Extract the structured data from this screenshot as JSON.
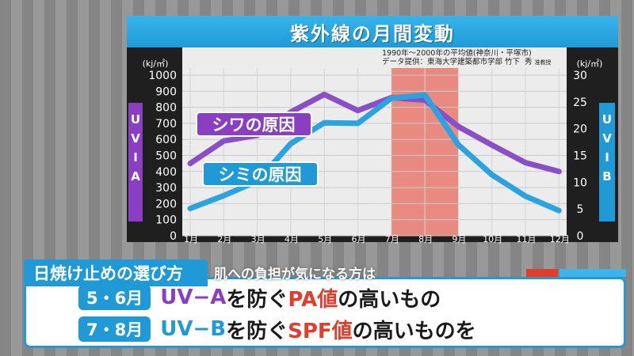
{
  "header": {
    "title": "紫外線の月間変動"
  },
  "note": {
    "line1": "1990年～2000年の平均値(神奈川・平塚市)",
    "line2": "データ提供：東海大学建築都市学部  竹下",
    "line2_name": "秀",
    "line2_role": "准教授"
  },
  "axis_labels": {
    "left_unit": "(kj/㎡)",
    "right_unit": "(kj/㎡)",
    "left_side": "UV-A",
    "right_side": "UV-B"
  },
  "annotations": {
    "wrinkle": "シワの原因",
    "spot": "シミの原因"
  },
  "chart_data": {
    "type": "line",
    "categories": [
      "1月",
      "2月",
      "3月",
      "4月",
      "5月",
      "6月",
      "7月",
      "8月",
      "9月",
      "10月",
      "11月",
      "12月"
    ],
    "highlight": {
      "from": "7月",
      "to": "9月",
      "color": "#e98a80"
    },
    "y_left": {
      "ticks": [
        0,
        100,
        200,
        300,
        400,
        500,
        600,
        700,
        800,
        900,
        1000
      ],
      "ylim": [
        0,
        1000
      ]
    },
    "y_right": {
      "ticks": [
        0,
        5,
        10,
        15,
        20,
        25,
        30
      ],
      "ylim": [
        0,
        30
      ]
    },
    "grid": true,
    "series": [
      {
        "name": "UV-A",
        "axis": "left",
        "color": "#8a4fc8",
        "values": [
          450,
          590,
          625,
          770,
          880,
          780,
          860,
          845,
          680,
          565,
          455,
          400
        ]
      },
      {
        "name": "UV-B",
        "axis": "right",
        "color": "#2aa3e0",
        "values": [
          5.1,
          7.5,
          10.2,
          17.2,
          21.1,
          21.0,
          25.7,
          26.3,
          17.0,
          11.4,
          7.4,
          4.7
        ]
      }
    ]
  },
  "tips": {
    "heading": "日焼け止めの選び方",
    "subheading": "肌への負担が気になる方は",
    "rows": [
      {
        "months": "5・6月",
        "uv": "UV−A",
        "mid": "を防ぐ",
        "factor": "PA値",
        "tail": "の高いもの"
      },
      {
        "months": "7・8月",
        "uv": "UV−B",
        "mid": "を防ぐ",
        "factor": "SPF値",
        "tail": "の高いものを"
      }
    ]
  },
  "colors": {
    "accent_blue": "#1f9ad6",
    "uva_purple": "#8a3fc3",
    "highlight_red": "#e23c2c"
  }
}
